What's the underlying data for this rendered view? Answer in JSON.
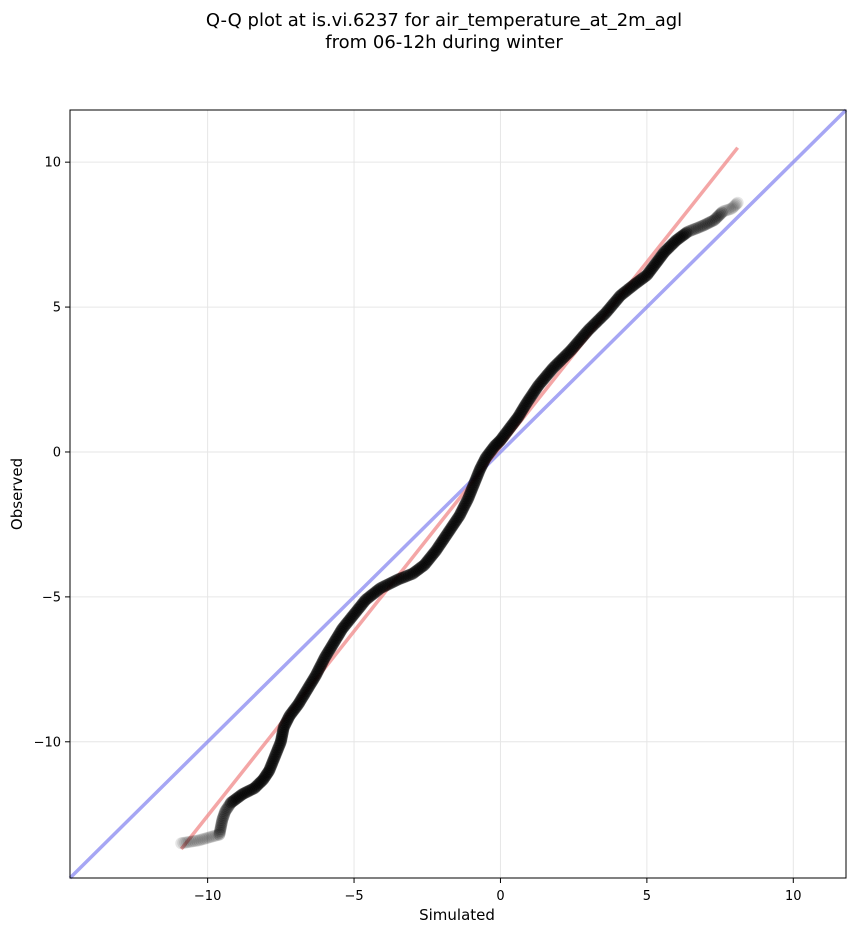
{
  "chart_data": {
    "type": "scatter",
    "title_lines": [
      "Q-Q plot at is.vi.6237 for air_temperature_at_2m_agl",
      "from 06-12h during winter"
    ],
    "xlabel": "Simulated",
    "ylabel": "Observed",
    "xlim": [
      -14.7,
      11.8
    ],
    "ylim": [
      -14.7,
      11.8
    ],
    "xticks": [
      -10,
      -5,
      0,
      5,
      10
    ],
    "yticks": [
      -10,
      -5,
      0,
      5,
      10
    ],
    "xtick_labels": [
      "−10",
      "−5",
      "0",
      "5",
      "10"
    ],
    "ytick_labels": [
      "−10",
      "−5",
      "0",
      "5",
      "10"
    ],
    "grid": true,
    "colors": {
      "points": "#000000",
      "fit_line": "#f08080",
      "identity_line": "#8080f0",
      "grid": "#e6e6e6"
    },
    "quantile_curve": [
      [
        -10.9,
        -13.5
      ],
      [
        -10.3,
        -13.4
      ],
      [
        -9.6,
        -13.2
      ],
      [
        -9.5,
        -12.7
      ],
      [
        -9.4,
        -12.4
      ],
      [
        -9.2,
        -12.1
      ],
      [
        -8.8,
        -11.8
      ],
      [
        -8.4,
        -11.6
      ],
      [
        -8.1,
        -11.3
      ],
      [
        -7.9,
        -11.0
      ],
      [
        -7.7,
        -10.5
      ],
      [
        -7.5,
        -10.0
      ],
      [
        -7.4,
        -9.5
      ],
      [
        -7.2,
        -9.1
      ],
      [
        -6.9,
        -8.7
      ],
      [
        -6.6,
        -8.2
      ],
      [
        -6.3,
        -7.7
      ],
      [
        -6.0,
        -7.1
      ],
      [
        -5.7,
        -6.6
      ],
      [
        -5.4,
        -6.1
      ],
      [
        -5.0,
        -5.6
      ],
      [
        -4.6,
        -5.1
      ],
      [
        -4.1,
        -4.7
      ],
      [
        -3.5,
        -4.4
      ],
      [
        -3.0,
        -4.2
      ],
      [
        -2.6,
        -3.9
      ],
      [
        -2.2,
        -3.4
      ],
      [
        -1.8,
        -2.8
      ],
      [
        -1.4,
        -2.2
      ],
      [
        -1.1,
        -1.6
      ],
      [
        -0.9,
        -1.1
      ],
      [
        -0.7,
        -0.6
      ],
      [
        -0.5,
        -0.2
      ],
      [
        -0.2,
        0.2
      ],
      [
        0.0,
        0.4
      ],
      [
        0.3,
        0.8
      ],
      [
        0.6,
        1.2
      ],
      [
        0.9,
        1.7
      ],
      [
        1.3,
        2.3
      ],
      [
        1.8,
        2.9
      ],
      [
        2.4,
        3.5
      ],
      [
        3.0,
        4.2
      ],
      [
        3.6,
        4.8
      ],
      [
        4.1,
        5.4
      ],
      [
        4.6,
        5.8
      ],
      [
        5.0,
        6.1
      ],
      [
        5.3,
        6.5
      ],
      [
        5.6,
        6.9
      ],
      [
        6.0,
        7.3
      ],
      [
        6.4,
        7.6
      ],
      [
        6.9,
        7.8
      ],
      [
        7.3,
        8.0
      ],
      [
        7.6,
        8.3
      ],
      [
        7.9,
        8.4
      ],
      [
        8.1,
        8.6
      ]
    ],
    "fit_line": [
      [
        -10.9,
        -13.7
      ],
      [
        8.1,
        10.5
      ]
    ],
    "identity_line": [
      [
        -14.7,
        -14.7
      ],
      [
        11.8,
        11.8
      ]
    ]
  }
}
